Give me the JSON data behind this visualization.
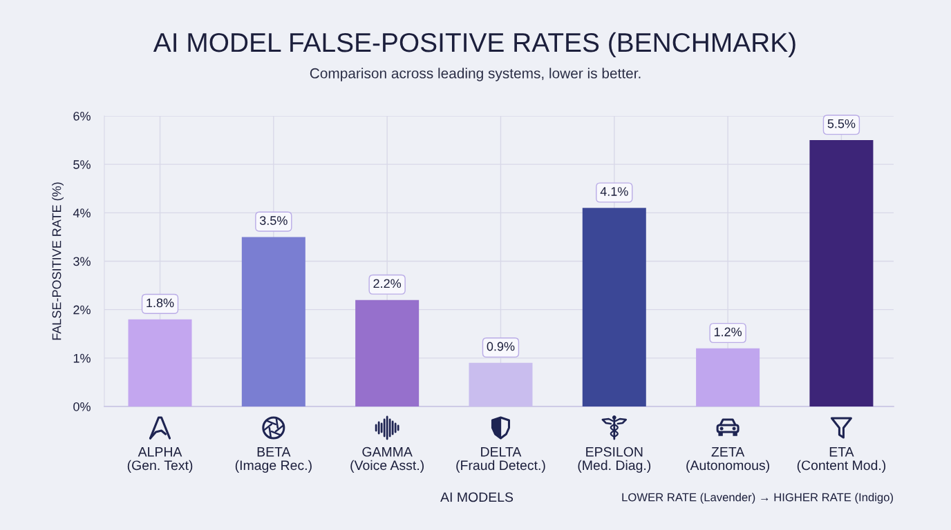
{
  "chart_data": {
    "type": "bar",
    "title": "AI MODEL FALSE-POSITIVE RATES (BENCHMARK)",
    "subtitle": "Comparison across leading systems, lower is better.",
    "xlabel": "AI MODELS",
    "ylabel": "FALSE-POSITIVE RATE (%)",
    "categories": [
      "ALPHA\n(Gen. Text)",
      "BETA\n(Image Rec.)",
      "GAMMA\n(Voice Asst.)",
      "DELTA\n(Fraud Detect.)",
      "EPSILON\n(Med. Diag.)",
      "ZETA\n(Autonomous)",
      "ETA\n(Content Mod.)"
    ],
    "values": [
      1.8,
      3.5,
      2.2,
      0.9,
      4.1,
      1.2,
      5.5
    ],
    "colors": [
      "#c3a6ef",
      "#7a7ed2",
      "#9670cc",
      "#c9bdee",
      "#3b4796",
      "#c0a6ee",
      "#3d2578"
    ],
    "value_labels": [
      "1.8%",
      "3.5%",
      "2.2%",
      "0.9%",
      "4.1%",
      "1.2%",
      "5.5%"
    ],
    "ylim": [
      0,
      6
    ],
    "yticks": [
      {
        "value": 0,
        "label": "0%"
      },
      {
        "value": 1,
        "label": "1%"
      },
      {
        "value": 2,
        "label": "2%"
      },
      {
        "value": 3,
        "label": "3%"
      },
      {
        "value": 4,
        "label": "4%"
      },
      {
        "value": 5,
        "label": "5%"
      },
      {
        "value": 6,
        "label": "6%"
      }
    ],
    "grid": true,
    "annotations": [
      "LOWER RATE (Lavender) → HIGHER RATE (Indigo)"
    ]
  }
}
